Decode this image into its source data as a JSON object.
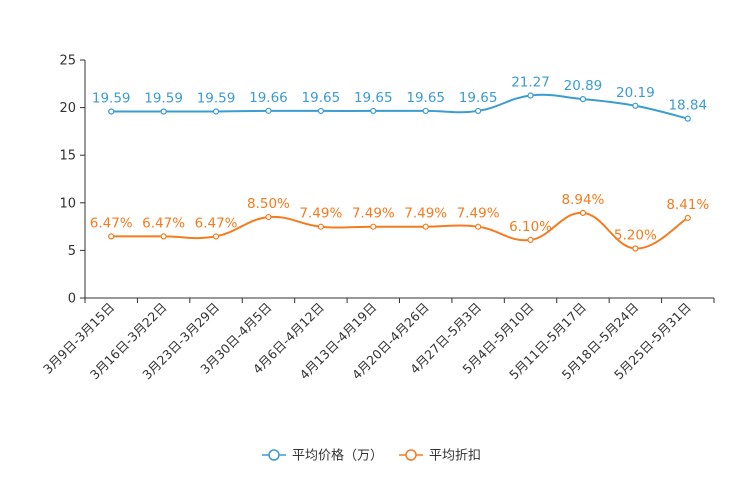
{
  "chart_data": {
    "type": "line",
    "title": "",
    "xlabel": "",
    "ylabel": "",
    "ylim": [
      0,
      25
    ],
    "yticks": [
      0,
      5,
      10,
      15,
      20,
      25
    ],
    "grid": false,
    "legend_position": "bottom-center",
    "categories": [
      "3月9日-3月15日",
      "3月16日-3月22日",
      "3月23日-3月29日",
      "3月30日-4月5日",
      "4月6日-4月12日",
      "4月13日-4月19日",
      "4月20日-4月26日",
      "4月27日-5月3日",
      "5月4日-5月10日",
      "5月11日-5月17日",
      "5月18日-5月24日",
      "5月25日-5月31日"
    ],
    "series": [
      {
        "name": "平均价格（万）",
        "color": "#3b9cd2",
        "values": [
          19.59,
          19.59,
          19.59,
          19.66,
          19.65,
          19.65,
          19.65,
          19.65,
          21.27,
          20.89,
          20.19,
          18.84
        ],
        "labels": [
          "19.59",
          "19.59",
          "19.59",
          "19.66",
          "19.65",
          "19.65",
          "19.65",
          "19.65",
          "21.27",
          "20.89",
          "20.19",
          "18.84"
        ]
      },
      {
        "name": "平均折扣",
        "color": "#f57b1f",
        "values": [
          6.47,
          6.47,
          6.47,
          8.5,
          7.49,
          7.49,
          7.49,
          7.49,
          6.1,
          8.94,
          5.2,
          8.41
        ],
        "labels": [
          "6.47%",
          "6.47%",
          "6.47%",
          "8.50%",
          "7.49%",
          "7.49%",
          "7.49%",
          "7.49%",
          "6.10%",
          "8.94%",
          "5.20%",
          "8.41%"
        ]
      }
    ]
  }
}
